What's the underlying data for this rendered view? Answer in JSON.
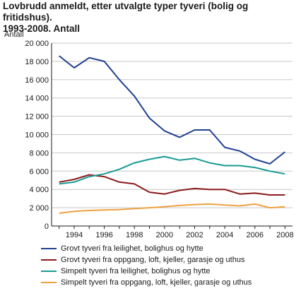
{
  "title_lines": [
    "Lovbrudd anmeldt, etter utvalgte typer tyveri (bolig og fritidshus).",
    "1993-2008. Antall"
  ],
  "chart_data": {
    "type": "line",
    "ylabel": "Antall",
    "ylim": [
      0,
      20000
    ],
    "yticks": [
      0,
      2000,
      4000,
      6000,
      8000,
      10000,
      12000,
      14000,
      16000,
      18000,
      20000
    ],
    "ytick_labels": [
      "0",
      "2 000",
      "4 000",
      "6 000",
      "8 000",
      "10 000",
      "12 000",
      "14 000",
      "16 000",
      "18 000",
      "20 000"
    ],
    "xlim": [
      1993,
      2008
    ],
    "x": [
      1993,
      1994,
      1995,
      1996,
      1997,
      1998,
      1999,
      2000,
      2001,
      2002,
      2003,
      2004,
      2005,
      2006,
      2007,
      2008
    ],
    "xtick_labels": [
      "1994",
      "1996",
      "1998",
      "2000",
      "2002",
      "2004",
      "2006",
      "2008"
    ],
    "xtick_values": [
      1994,
      1996,
      1998,
      2000,
      2002,
      2004,
      2006,
      2008
    ],
    "grid": "horizontal",
    "legend_position": "bottom",
    "series": [
      {
        "name": "Grovt tyveri fra leilighet, bolighus og hytte",
        "color": "#1f3f8f",
        "values": [
          18600,
          17300,
          18400,
          18000,
          16000,
          14200,
          11800,
          10400,
          9700,
          10500,
          10500,
          8600,
          8200,
          7300,
          6800,
          8100
        ]
      },
      {
        "name": "Grovt tyveri fra oppgang, loft, kjeller, garasje og uthus",
        "color": "#8b1a1a",
        "values": [
          4800,
          5100,
          5600,
          5400,
          4800,
          4600,
          3700,
          3500,
          3900,
          4100,
          4000,
          4000,
          3500,
          3600,
          3400,
          3400
        ]
      },
      {
        "name": "Simpelt tyveri fra leilighet, bolighus og hytte",
        "color": "#1a9a94",
        "values": [
          4600,
          4800,
          5400,
          5700,
          6200,
          6900,
          7300,
          7600,
          7200,
          7400,
          6900,
          6600,
          6600,
          6400,
          6000,
          5700
        ]
      },
      {
        "name": "Simpelt tyveri fra oppgang, loft, kjeller, garasje og uthus",
        "color": "#f0a040",
        "values": [
          1400,
          1600,
          1700,
          1750,
          1800,
          1900,
          2000,
          2100,
          2250,
          2350,
          2400,
          2300,
          2200,
          2400,
          2000,
          2100
        ]
      }
    ]
  }
}
